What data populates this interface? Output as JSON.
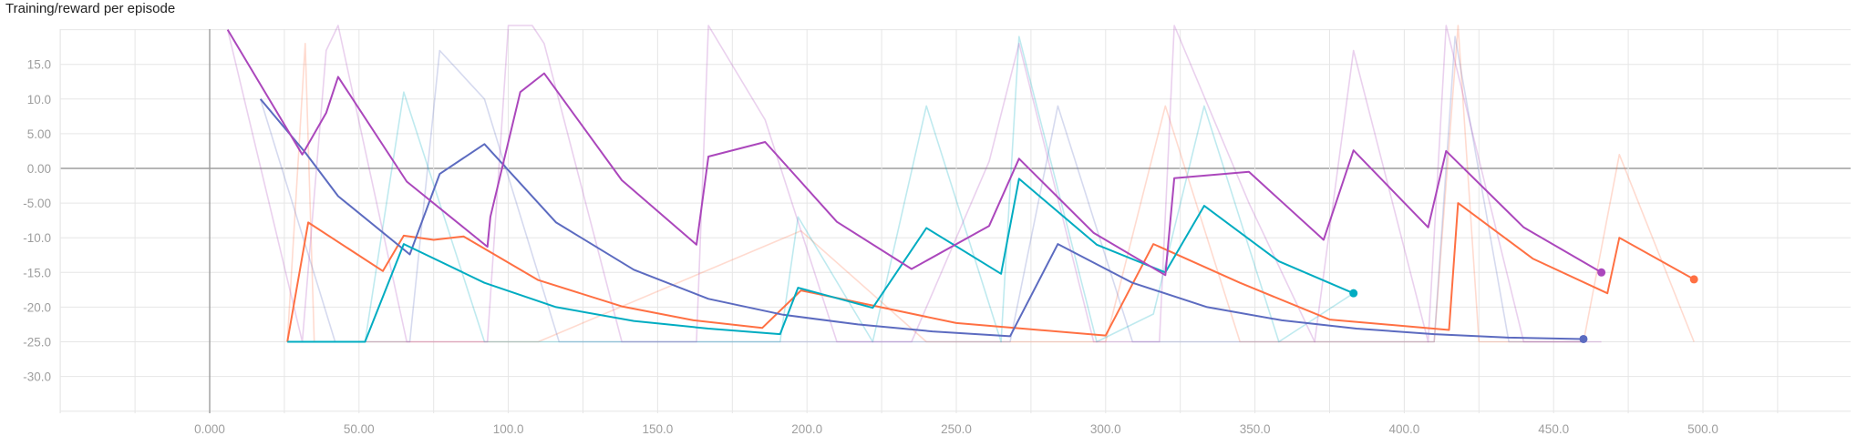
{
  "chart_data": {
    "type": "line",
    "title": "Training/reward per episode",
    "xlabel": "",
    "ylabel": "",
    "xlim": [
      -50,
      550
    ],
    "ylim": [
      -35,
      20
    ],
    "grid": true,
    "x_ticks": [
      "0.000",
      "50.00",
      "100.0",
      "150.0",
      "200.0",
      "250.0",
      "300.0",
      "350.0",
      "400.0",
      "450.0",
      "500.0"
    ],
    "y_ticks": [
      "15.0",
      "10.0",
      "5.00",
      "0.00",
      "-5.00",
      "-10.0",
      "-15.0",
      "-20.0",
      "-25.0",
      "-30.0"
    ],
    "series": [
      {
        "color": "#ff7043",
        "x": [
          26,
          33,
          58,
          65,
          75,
          85,
          110,
          138,
          162,
          185,
          198,
          250,
          300,
          316,
          345,
          375,
          415,
          418,
          443,
          468,
          472,
          497
        ],
        "y": [
          -25,
          -7.8,
          -14.8,
          -9.7,
          -10.3,
          -9.8,
          -16.1,
          -19.9,
          -21.9,
          -23,
          -17.6,
          -22.3,
          -24.1,
          -10.9,
          -16.5,
          -21.8,
          -23.3,
          -5,
          -13,
          -18,
          -10,
          -16
        ],
        "raw_x": [
          26,
          32,
          35,
          48,
          57,
          75,
          85,
          110,
          198,
          240,
          300,
          320,
          345,
          410,
          418,
          425,
          445,
          460,
          472,
          497
        ],
        "raw_y": [
          -25,
          18,
          -25,
          -25,
          -25,
          -25,
          -25,
          -25,
          -9,
          -25,
          -25,
          9,
          -25,
          -25,
          23,
          -25,
          -25,
          -25,
          2,
          -25
        ]
      },
      {
        "color": "#5c6bc0",
        "x": [
          17,
          32,
          43,
          67,
          77,
          92,
          116,
          142,
          167,
          192,
          217,
          242,
          268,
          284,
          309,
          334,
          359,
          384,
          410,
          435,
          460
        ],
        "y": [
          10,
          2.3,
          -4,
          -12.4,
          -0.8,
          3.5,
          -7.8,
          -14.6,
          -18.8,
          -21.1,
          -22.5,
          -23.5,
          -24.2,
          -10.9,
          -16.5,
          -20,
          -21.9,
          -23.1,
          -23.9,
          -24.4,
          -24.6
        ],
        "raw_x": [
          17,
          42,
          67,
          77,
          92,
          117,
          142,
          192,
          222,
          268,
          284,
          309,
          334,
          384,
          410,
          417,
          435,
          460
        ],
        "raw_y": [
          10,
          -25,
          -25,
          17,
          10,
          -25,
          -25,
          -25,
          -25,
          -25,
          9,
          -25,
          -25,
          -25,
          -25,
          19,
          -25,
          -25
        ]
      },
      {
        "color": "#00acc1",
        "x": [
          26,
          52,
          65,
          92,
          116,
          142,
          167,
          191,
          197,
          222,
          240,
          265,
          271,
          297,
          320,
          333,
          358,
          383
        ],
        "y": [
          -25,
          -25,
          -10.9,
          -16.5,
          -20,
          -22,
          -23.1,
          -23.9,
          -17.2,
          -20.1,
          -8.6,
          -15.2,
          -1.5,
          -11,
          -15,
          -5.4,
          -13.4,
          -18
        ],
        "raw_x": [
          26,
          52,
          65,
          92,
          116,
          191,
          197,
          222,
          240,
          265,
          271,
          297,
          316,
          333,
          358,
          383
        ],
        "raw_y": [
          -25,
          -25,
          11,
          -25,
          -25,
          -25,
          -7,
          -25,
          9,
          -25,
          19,
          -25,
          -21,
          9,
          -25,
          -18
        ]
      },
      {
        "color": "#ab47bc",
        "x": [
          6,
          31,
          39,
          43,
          66,
          93,
          94,
          104,
          112,
          138,
          163,
          167,
          186,
          210,
          235,
          261,
          271,
          296,
          320,
          323,
          348,
          373,
          383,
          408,
          414,
          440,
          466
        ],
        "y": [
          20,
          2,
          8,
          13.2,
          -1.9,
          -11.3,
          -7,
          11,
          13.7,
          -1.7,
          -11,
          1.7,
          3.8,
          -7.7,
          -14.5,
          -8.3,
          1.4,
          -9.3,
          -15.4,
          -1.4,
          -0.5,
          -10.3,
          2.6,
          -8.5,
          2.5,
          -8.5,
          -15
        ],
        "raw_x": [
          6,
          31,
          39,
          43,
          66,
          93,
          100,
          108,
          112,
          138,
          163,
          167,
          186,
          210,
          235,
          261,
          271,
          296,
          318,
          323,
          348,
          370,
          383,
          408,
          414,
          440,
          466
        ],
        "raw_y": [
          20,
          -25,
          17,
          25,
          -25,
          -25,
          25,
          22,
          18,
          -25,
          -25,
          25,
          7,
          -25,
          -25,
          1,
          18,
          -25,
          -25,
          25,
          -5,
          -25,
          17,
          -25,
          25,
          -25,
          -25
        ]
      }
    ]
  }
}
